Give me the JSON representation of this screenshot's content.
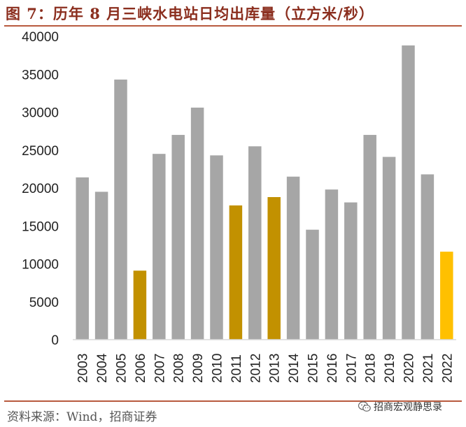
{
  "title": "图 7：历年 8 月三峡水电站日均出库量（立方米/秒）",
  "source": "资料来源：Wind，招商证券",
  "watermark": "招商宏观静思录",
  "colors": {
    "gray": "#a6a6a6",
    "highlight_dark": "#c29100",
    "highlight_current": "#ffc000",
    "axis": "#d9d9d9",
    "rule": "#b85a3e",
    "title": "#8b2e1e"
  },
  "chart_data": {
    "type": "bar",
    "categories": [
      "2003",
      "2004",
      "2005",
      "2006",
      "2007",
      "2008",
      "2009",
      "2010",
      "2011",
      "2012",
      "2013",
      "2014",
      "2015",
      "2016",
      "2017",
      "2018",
      "2019",
      "2020",
      "2021",
      "2022"
    ],
    "values": [
      21400,
      19500,
      34300,
      9100,
      24500,
      27000,
      30600,
      24300,
      17700,
      25500,
      18800,
      21500,
      14500,
      19800,
      18100,
      27000,
      24100,
      38800,
      21800,
      11600
    ],
    "colors": [
      "gray",
      "gray",
      "gray",
      "highlight_dark",
      "gray",
      "gray",
      "gray",
      "gray",
      "highlight_dark",
      "gray",
      "highlight_dark",
      "gray",
      "gray",
      "gray",
      "gray",
      "gray",
      "gray",
      "gray",
      "gray",
      "highlight_current"
    ],
    "ylim": [
      0,
      40000
    ],
    "yticks": [
      0,
      5000,
      10000,
      15000,
      20000,
      25000,
      30000,
      35000,
      40000
    ],
    "grid": false,
    "legend": "none"
  }
}
